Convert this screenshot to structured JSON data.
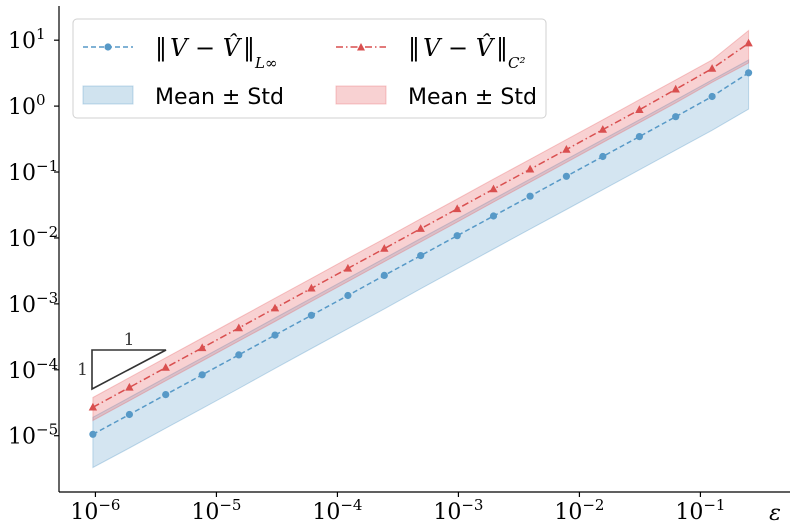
{
  "chart_data": {
    "type": "line",
    "xscale": "log",
    "yscale": "log",
    "xlabel": "ε",
    "ylabel": "",
    "xlim": [
      5e-07,
      0.55
    ],
    "ylim": [
      1.4e-06,
      33
    ],
    "x_ticks": [
      {
        "value": 1e-06,
        "base": "10",
        "exp": "−6"
      },
      {
        "value": 1e-05,
        "base": "10",
        "exp": "−5"
      },
      {
        "value": 0.0001,
        "base": "10",
        "exp": "−4"
      },
      {
        "value": 0.001,
        "base": "10",
        "exp": "−3"
      },
      {
        "value": 0.01,
        "base": "10",
        "exp": "−2"
      },
      {
        "value": 0.1,
        "base": "10",
        "exp": "−1"
      }
    ],
    "y_ticks": [
      {
        "value": 1e-05,
        "base": "10",
        "exp": "−5"
      },
      {
        "value": 0.0001,
        "base": "10",
        "exp": "−4"
      },
      {
        "value": 0.001,
        "base": "10",
        "exp": "−3"
      },
      {
        "value": 0.01,
        "base": "10",
        "exp": "−2"
      },
      {
        "value": 0.1,
        "base": "10",
        "exp": "−1"
      },
      {
        "value": 1,
        "base": "10",
        "exp": "0"
      },
      {
        "value": 10,
        "base": "10",
        "exp": "1"
      }
    ],
    "x": [
      9.54e-07,
      1.91e-06,
      3.81e-06,
      7.63e-06,
      1.53e-05,
      3.05e-05,
      6.1e-05,
      0.000122,
      0.000244,
      0.000488,
      0.000977,
      0.00195,
      0.00391,
      0.00781,
      0.0156,
      0.0313,
      0.0625,
      0.125,
      0.25
    ],
    "series": [
      {
        "name": "‖V − V̂‖ L∞",
        "color": "#5799c7",
        "marker": "circle",
        "linestyle": "dashed",
        "values": [
          1.05e-05,
          2.1e-05,
          4.2e-05,
          8.4e-05,
          0.000168,
          0.000336,
          0.00067,
          0.00134,
          0.0027,
          0.0054,
          0.0108,
          0.0215,
          0.043,
          0.086,
          0.172,
          0.345,
          0.69,
          1.4,
          3.2
        ],
        "band_lower": [
          3.3e-06,
          6.5e-06,
          1.3e-05,
          2.6e-05,
          5.2e-05,
          0.000105,
          0.00021,
          0.00042,
          0.00084,
          0.0017,
          0.0034,
          0.0068,
          0.0136,
          0.027,
          0.054,
          0.108,
          0.215,
          0.43,
          0.9
        ],
        "band_upper": [
          1.9e-05,
          3.8e-05,
          7.6e-05,
          0.000152,
          0.000305,
          0.00061,
          0.00122,
          0.00244,
          0.0049,
          0.0098,
          0.0195,
          0.039,
          0.078,
          0.156,
          0.31,
          0.62,
          1.24,
          2.5,
          5.0
        ]
      },
      {
        "name": "‖V − V̂‖ C²",
        "color": "#d94f4f",
        "marker": "triangle",
        "linestyle": "dashdot",
        "values": [
          2.7e-05,
          5.4e-05,
          0.000108,
          0.000215,
          0.00043,
          0.00086,
          0.00172,
          0.00345,
          0.0069,
          0.0138,
          0.0276,
          0.055,
          0.11,
          0.22,
          0.44,
          0.88,
          1.8,
          3.7,
          9.0
        ],
        "band_lower": [
          1.7e-05,
          3.4e-05,
          6.8e-05,
          0.000136,
          0.000272,
          0.00054,
          0.00109,
          0.00218,
          0.00436,
          0.0087,
          0.0174,
          0.035,
          0.07,
          0.14,
          0.28,
          0.56,
          1.12,
          2.3,
          4.5
        ],
        "band_upper": [
          3.8e-05,
          7.6e-05,
          0.000152,
          0.000304,
          0.00061,
          0.00122,
          0.00243,
          0.0049,
          0.0097,
          0.0195,
          0.039,
          0.078,
          0.156,
          0.31,
          0.62,
          1.25,
          2.5,
          5.0,
          14.0
        ]
      }
    ],
    "legend": {
      "placement": "top-left",
      "entries": [
        {
          "kind": "line",
          "series": 0,
          "norm_left": "‖",
          "norm_body": "V − V̂",
          "norm_right": "‖",
          "subscript": "L∞"
        },
        {
          "kind": "line",
          "series": 1,
          "norm_left": "‖",
          "norm_body": "V − V̂",
          "norm_right": "‖",
          "subscript": "C²"
        },
        {
          "kind": "band",
          "series": 0,
          "label": "Mean ± Std"
        },
        {
          "kind": "band",
          "series": 1,
          "label": "Mean ± Std"
        }
      ]
    },
    "slope_triangle": {
      "run_label": "1",
      "rise_label": "1",
      "slope": 1
    }
  }
}
